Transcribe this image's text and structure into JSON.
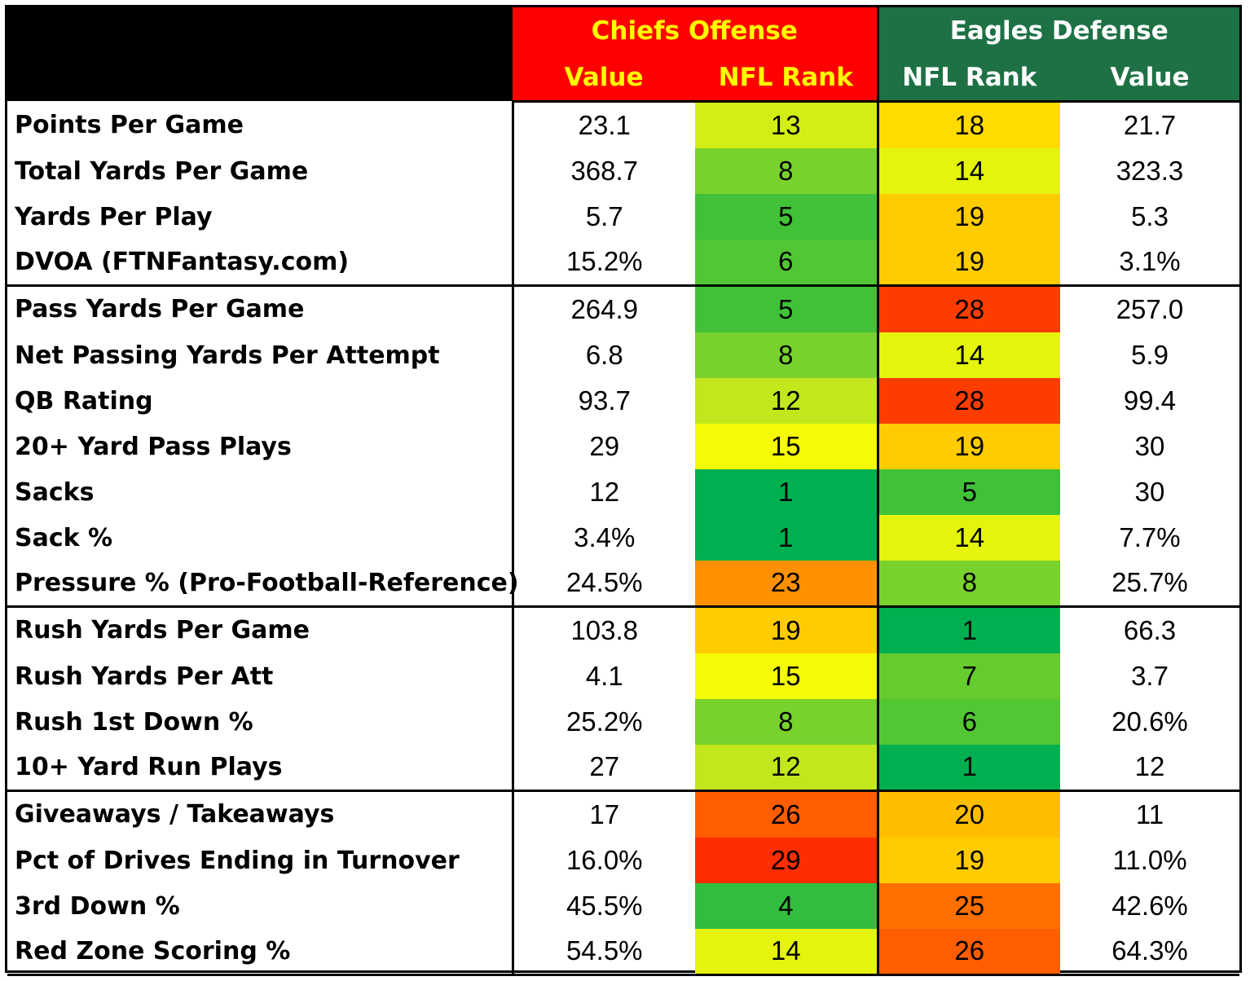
{
  "header": {
    "offense_title": "Chiefs Offense",
    "defense_title": "Eagles Defense",
    "offense_value_label": "Value",
    "offense_rank_label": "NFL Rank",
    "defense_rank_label": "NFL Rank",
    "defense_value_label": "Value"
  },
  "colors": {
    "chiefs_header_bg": "#ff0000",
    "chiefs_header_text": "#ffff00",
    "eagles_header_bg": "#1e7145",
    "eagles_header_text": "#ffffff"
  },
  "rows": [
    {
      "stat": "Points Per Game",
      "off_value": "23.1",
      "off_rank": "13",
      "def_rank": "18",
      "def_value": "21.7"
    },
    {
      "stat": "Total Yards Per Game",
      "off_value": "368.7",
      "off_rank": "8",
      "def_rank": "14",
      "def_value": "323.3"
    },
    {
      "stat": "Yards Per Play",
      "off_value": "5.7",
      "off_rank": "5",
      "def_rank": "19",
      "def_value": "5.3"
    },
    {
      "stat": "DVOA (FTNFantasy.com)",
      "off_value": "15.2%",
      "off_rank": "6",
      "def_rank": "19",
      "def_value": "3.1%"
    },
    {
      "stat": "Pass Yards Per Game",
      "off_value": "264.9",
      "off_rank": "5",
      "def_rank": "28",
      "def_value": "257.0"
    },
    {
      "stat": "Net Passing Yards Per Attempt",
      "off_value": "6.8",
      "off_rank": "8",
      "def_rank": "14",
      "def_value": "5.9"
    },
    {
      "stat": "QB Rating",
      "off_value": "93.7",
      "off_rank": "12",
      "def_rank": "28",
      "def_value": "99.4"
    },
    {
      "stat": "20+ Yard Pass Plays",
      "off_value": "29",
      "off_rank": "15",
      "def_rank": "19",
      "def_value": "30"
    },
    {
      "stat": "Sacks",
      "off_value": "12",
      "off_rank": "1",
      "def_rank": "5",
      "def_value": "30"
    },
    {
      "stat": "Sack %",
      "off_value": "3.4%",
      "off_rank": "1",
      "def_rank": "14",
      "def_value": "7.7%"
    },
    {
      "stat": "Pressure % (Pro-Football-Reference)",
      "off_value": "24.5%",
      "off_rank": "23",
      "def_rank": "8",
      "def_value": "25.7%"
    },
    {
      "stat": "Rush Yards Per Game",
      "off_value": "103.8",
      "off_rank": "19",
      "def_rank": "1",
      "def_value": "66.3"
    },
    {
      "stat": "Rush Yards Per Att",
      "off_value": "4.1",
      "off_rank": "15",
      "def_rank": "7",
      "def_value": "3.7"
    },
    {
      "stat": "Rush 1st Down %",
      "off_value": "25.2%",
      "off_rank": "8",
      "def_rank": "6",
      "def_value": "20.6%"
    },
    {
      "stat": "10+ Yard Run Plays",
      "off_value": "27",
      "off_rank": "12",
      "def_rank": "1",
      "def_value": "12"
    },
    {
      "stat": "Giveaways / Takeaways",
      "off_value": "17",
      "off_rank": "26",
      "def_rank": "20",
      "def_value": "11"
    },
    {
      "stat": "Pct of Drives Ending in Turnover",
      "off_value": "16.0%",
      "off_rank": "29",
      "def_rank": "19",
      "def_value": "11.0%"
    },
    {
      "stat": "3rd Down %",
      "off_value": "45.5%",
      "off_rank": "4",
      "def_rank": "25",
      "def_value": "42.6%"
    },
    {
      "stat": "Red Zone Scoring %",
      "off_value": "54.5%",
      "off_rank": "14",
      "def_rank": "26",
      "def_value": "64.3%"
    }
  ]
}
